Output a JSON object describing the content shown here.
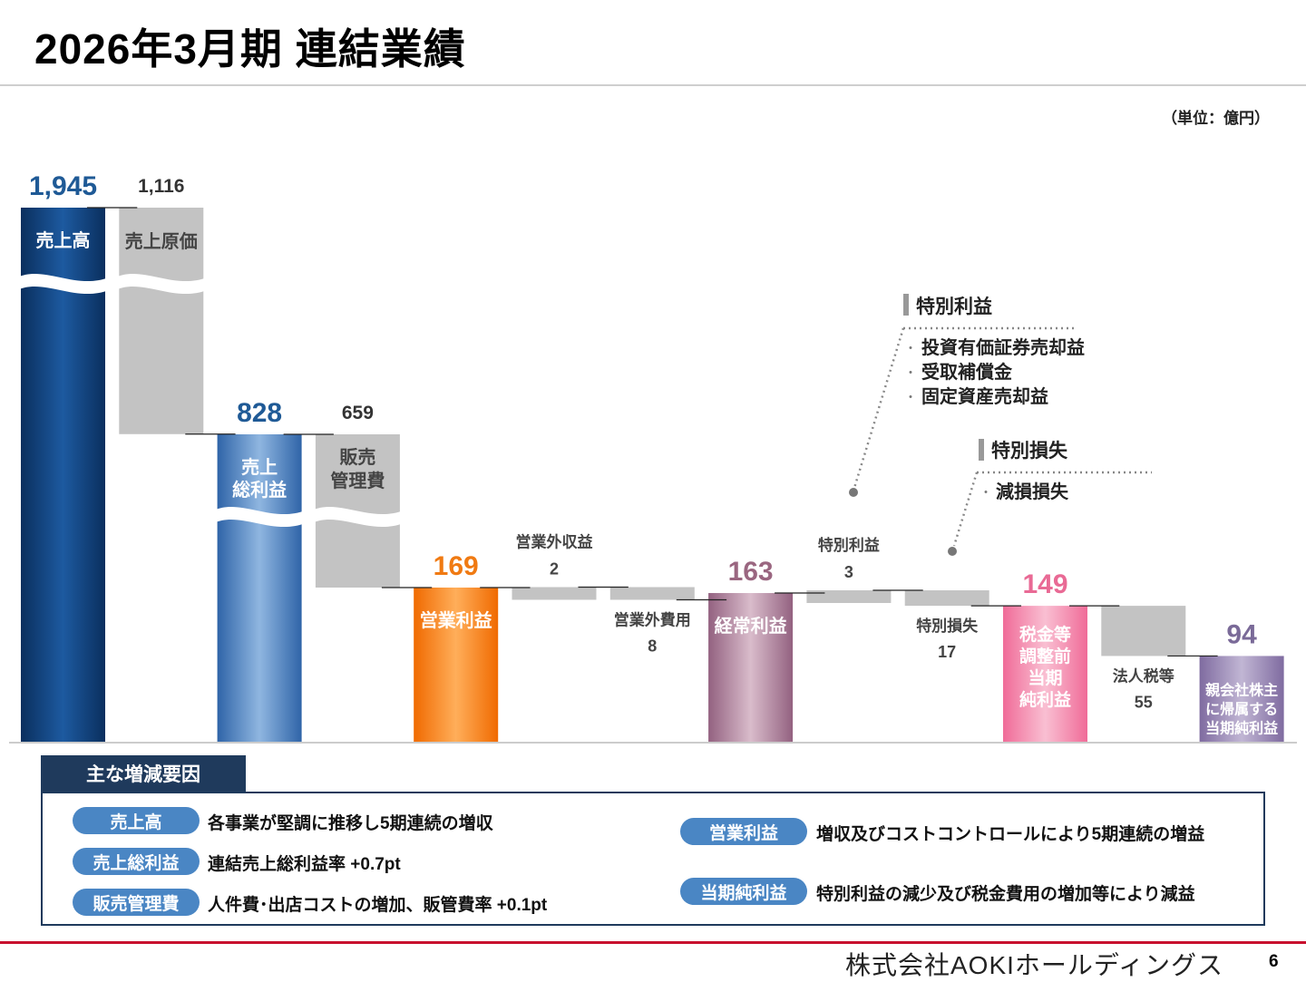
{
  "title": "2026年3月期 連結業績",
  "unit": "（単位：億円）",
  "chart_data": {
    "type": "bar",
    "subtype": "waterfall",
    "items": [
      {
        "key": "sales",
        "label": [
          "売上高"
        ],
        "value": 1945,
        "value_text": "1,945",
        "kind": "total"
      },
      {
        "key": "cogs",
        "label": [
          "売上原価"
        ],
        "value": 1116,
        "value_text": "1,116",
        "kind": "decrease"
      },
      {
        "key": "gross",
        "label": [
          "売上",
          "総利益"
        ],
        "value": 828,
        "value_text": "828",
        "kind": "total"
      },
      {
        "key": "sga",
        "label": [
          "販売",
          "管理費"
        ],
        "value": 659,
        "value_text": "659",
        "kind": "decrease"
      },
      {
        "key": "op",
        "label": [
          "営業利益"
        ],
        "value": 169,
        "value_text": "169",
        "kind": "total"
      },
      {
        "key": "nonop_inc",
        "label": [
          "営業外収益"
        ],
        "value": 2,
        "value_text": "2",
        "kind": "increase"
      },
      {
        "key": "nonop_exp",
        "label": [
          "営業外費用"
        ],
        "value": 8,
        "value_text": "8",
        "kind": "decrease"
      },
      {
        "key": "ordinary",
        "label": [
          "経常利益"
        ],
        "value": 163,
        "value_text": "163",
        "kind": "total"
      },
      {
        "key": "ext_inc",
        "label": [
          "特別利益"
        ],
        "value": 3,
        "value_text": "3",
        "kind": "increase"
      },
      {
        "key": "ext_loss",
        "label": [
          "特別損失"
        ],
        "value": 17,
        "value_text": "17",
        "kind": "decrease"
      },
      {
        "key": "pretax",
        "label": [
          "税金等",
          "調整前",
          "当期",
          "純利益"
        ],
        "value": 149,
        "value_text": "149",
        "kind": "total"
      },
      {
        "key": "tax",
        "label": [
          "法人税等"
        ],
        "value": 55,
        "value_text": "55",
        "kind": "decrease"
      },
      {
        "key": "net",
        "label": [
          "親会社株主",
          "に帰属する",
          "当期純利益"
        ],
        "value": 94,
        "value_text": "94",
        "kind": "total"
      }
    ],
    "colors": {
      "sales": "#0e3f7a",
      "gross": "#3f79bd",
      "op": "#f07a12",
      "ordinary": "#a4708f",
      "pretax": "#ee7fa3",
      "net": "#8a78a8",
      "decrease": "#c3c3c3",
      "value_blue": "#1f5a96",
      "value_orange": "#f07a12",
      "value_mauve": "#9a6680",
      "value_pink": "#e96a95",
      "value_purple": "#7a6a98"
    },
    "callouts": [
      {
        "title": "特別利益",
        "items": [
          "投資有価証券売却益",
          "受取補償金",
          "固定資産売却益"
        ]
      },
      {
        "title": "特別損失",
        "items": [
          "減損損失"
        ]
      }
    ]
  },
  "factors": {
    "heading": "主な増減要因",
    "left": [
      {
        "tag": "売上高",
        "text": "各事業が堅調に推移し5期連続の増収"
      },
      {
        "tag": "売上総利益",
        "text": "連結売上総利益率 +0.7pt"
      },
      {
        "tag": "販売管理費",
        "text": "人件費･出店コストの増加、販管費率 +0.1pt"
      }
    ],
    "right": [
      {
        "tag": "営業利益",
        "text": "増収及びコストコントロールにより5期連続の増益"
      },
      {
        "tag": "当期純利益",
        "text": "特別利益の減少及び税金費用の増加等により減益"
      }
    ]
  },
  "footer": {
    "company": "株式会社AOKIホールディングス",
    "page": "6"
  }
}
